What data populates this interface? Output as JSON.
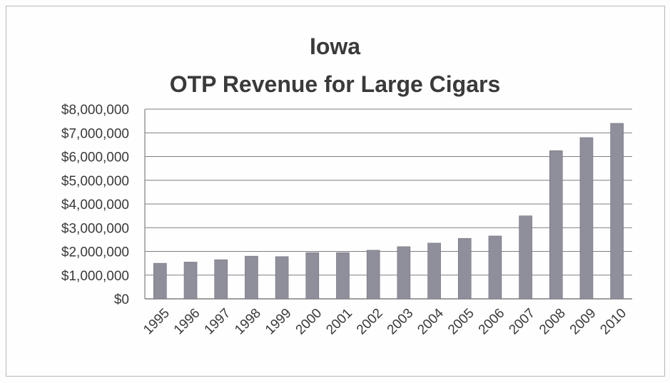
{
  "chart_data": {
    "type": "bar",
    "title_line_1": "Iowa",
    "title_line_2": "OTP Revenue for Large Cigars",
    "xlabel": "",
    "ylabel": "",
    "ylim": [
      0,
      8000000
    ],
    "y_ticks": [
      0,
      1000000,
      2000000,
      3000000,
      4000000,
      5000000,
      6000000,
      7000000,
      8000000
    ],
    "y_tick_labels": [
      "$0",
      "$1,000,000",
      "$2,000,000",
      "$3,000,000",
      "$4,000,000",
      "$5,000,000",
      "$6,000,000",
      "$7,000,000",
      "$8,000,000"
    ],
    "categories": [
      "1995",
      "1996",
      "1997",
      "1998",
      "1999",
      "2000",
      "2001",
      "2002",
      "2003",
      "2004",
      "2005",
      "2006",
      "2007",
      "2008",
      "2009",
      "2010"
    ],
    "values": [
      1500000,
      1550000,
      1650000,
      1800000,
      1780000,
      1950000,
      1950000,
      2050000,
      2200000,
      2350000,
      2550000,
      2650000,
      3500000,
      6250000,
      6800000,
      7400000
    ],
    "grid": true,
    "bar_color": "#8f8f9c",
    "grid_color": "#7f7f7f"
  }
}
